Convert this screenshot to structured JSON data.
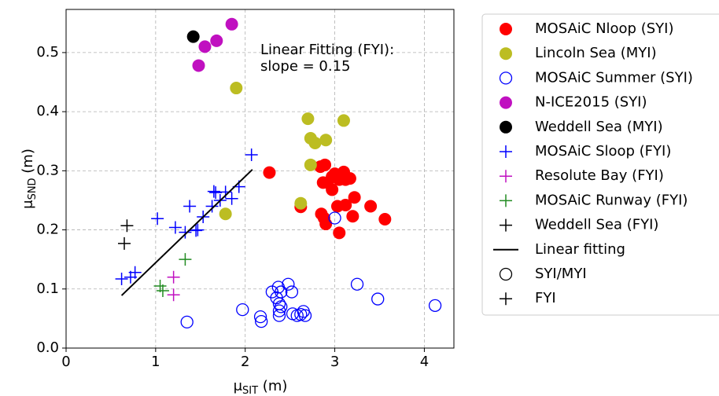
{
  "chart_data": {
    "type": "scatter",
    "x_label": [
      "μ",
      "SIT",
      " (m)"
    ],
    "y_label": [
      "μ",
      "SND",
      " (m)"
    ],
    "annotation": [
      "Linear Fitting (FYI):",
      "slope = 0.15"
    ],
    "xlim": [
      0,
      4.33
    ],
    "ylim": [
      0,
      0.573
    ],
    "xticks": [
      0,
      1,
      2,
      3,
      4
    ],
    "yticks": [
      {
        "value": 0,
        "label": "0.0"
      },
      {
        "value": 0.1,
        "label": "0.1"
      },
      {
        "value": 0.2,
        "label": "0.2"
      },
      {
        "value": 0.3,
        "label": "0.3"
      },
      {
        "value": 0.4,
        "label": "0.4"
      },
      {
        "value": 0.5,
        "label": "0.5"
      }
    ],
    "grid": true,
    "legend": "upper right outside",
    "series": [
      {
        "name": "MOSAiC Nloop (SYI)",
        "color": "#ff0000",
        "marker": "filled",
        "x": [
          2.27,
          2.62,
          2.84,
          2.89,
          2.87,
          2.92,
          2.97,
          2.97,
          3.0,
          3.05,
          3.1,
          3.12,
          3.17,
          3.03,
          3.12,
          3.22,
          3.2,
          3.4,
          3.56,
          3.05,
          2.85,
          2.88,
          2.9
        ],
        "values": [
          0.297,
          0.239,
          0.307,
          0.31,
          0.28,
          0.28,
          0.268,
          0.29,
          0.295,
          0.285,
          0.298,
          0.285,
          0.287,
          0.24,
          0.242,
          0.255,
          0.223,
          0.24,
          0.218,
          0.195,
          0.227,
          0.22,
          0.21
        ]
      },
      {
        "name": "Lincoln Sea (MYI)",
        "color": "#bcbd22",
        "marker": "filled",
        "x": [
          2.7,
          2.73,
          2.78,
          2.9,
          3.1,
          2.73,
          2.62,
          1.9,
          1.78
        ],
        "values": [
          0.388,
          0.355,
          0.347,
          0.352,
          0.385,
          0.31,
          0.245,
          0.44,
          0.227
        ]
      },
      {
        "name": "MOSAiC Summer (SYI)",
        "color": "#0000ff",
        "marker": "open",
        "x": [
          1.35,
          1.97,
          2.17,
          2.18,
          2.3,
          2.35,
          2.37,
          2.38,
          2.38,
          2.38,
          2.4,
          2.48,
          2.52,
          2.53,
          2.58,
          2.62,
          2.65,
          2.67,
          3.25,
          3.48,
          4.12,
          3.0,
          2.4
        ],
        "values": [
          0.044,
          0.065,
          0.053,
          0.045,
          0.095,
          0.085,
          0.103,
          0.075,
          0.063,
          0.055,
          0.07,
          0.108,
          0.095,
          0.058,
          0.055,
          0.057,
          0.062,
          0.055,
          0.108,
          0.083,
          0.072,
          0.22,
          0.095
        ]
      },
      {
        "name": "N-ICE2015 (SYI)",
        "color": "#c010c0",
        "marker": "filled",
        "x": [
          1.85,
          1.68,
          1.55,
          1.48
        ],
        "values": [
          0.548,
          0.52,
          0.51,
          0.478
        ]
      },
      {
        "name": "Weddell Sea (MYI)",
        "color": "#000000",
        "marker": "filled",
        "x": [
          1.42
        ],
        "values": [
          0.527
        ]
      },
      {
        "name": "MOSAiC Sloop (FYI)",
        "color": "#0000ff",
        "marker": "plus",
        "x": [
          0.62,
          0.72,
          0.77,
          1.02,
          1.22,
          1.38,
          1.33,
          1.45,
          1.47,
          1.53,
          1.65,
          1.67,
          1.72,
          1.78,
          1.85,
          1.93,
          2.07,
          1.63
        ],
        "values": [
          0.117,
          0.12,
          0.128,
          0.219,
          0.204,
          0.24,
          0.196,
          0.199,
          0.2,
          0.222,
          0.265,
          0.263,
          0.25,
          0.264,
          0.253,
          0.273,
          0.327,
          0.24
        ]
      },
      {
        "name": "Resolute Bay (FYI)",
        "color": "#c010c0",
        "marker": "plus",
        "x": [
          1.2,
          1.2
        ],
        "values": [
          0.12,
          0.09
        ]
      },
      {
        "name": "MOSAiC Runway (FYI)",
        "color": "#228b22",
        "marker": "plus",
        "x": [
          1.33,
          1.05,
          1.08
        ],
        "values": [
          0.15,
          0.105,
          0.097
        ]
      },
      {
        "name": "Weddell Sea (FYI)",
        "color": "#000000",
        "marker": "plus",
        "x": [
          0.68,
          0.65
        ],
        "values": [
          0.207,
          0.177
        ]
      },
      {
        "name": "Linear fitting",
        "color": "#000000",
        "marker": "line",
        "x": [
          0.62,
          2.08
        ],
        "values": [
          0.089,
          0.302
        ]
      }
    ],
    "legend_extra": [
      {
        "name": "SYI/MYI",
        "color": "#000000",
        "marker": "open"
      },
      {
        "name": "FYI",
        "color": "#000000",
        "marker": "plus"
      }
    ]
  }
}
